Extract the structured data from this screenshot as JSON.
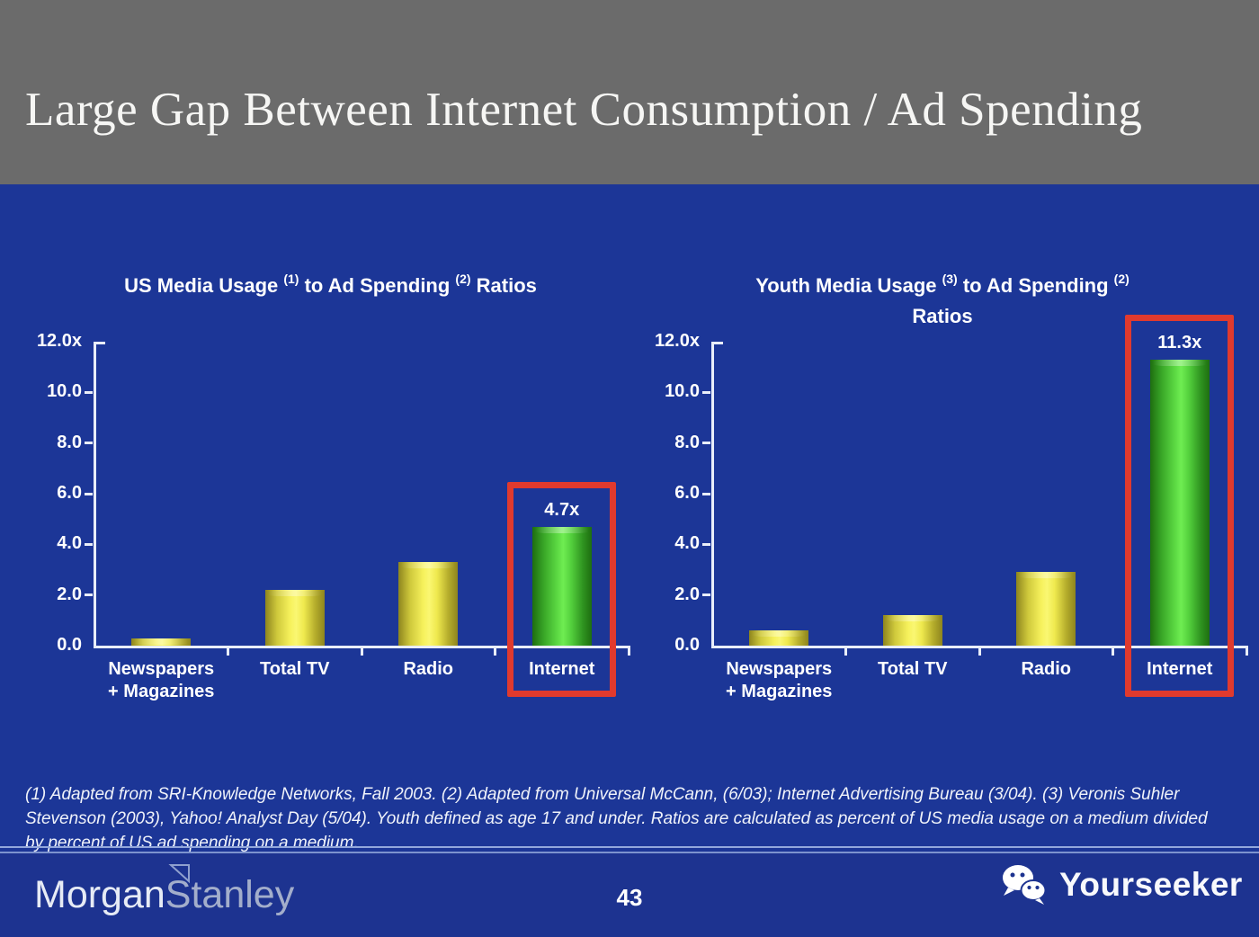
{
  "header": {
    "title": "Large Gap Between Internet Consumption / Ad Spending"
  },
  "footnote": {
    "lines": [
      "(1) Adapted from SRI-Knowledge Networks, Fall 2003.  (2) Adapted from Universal McCann, (6/03); Internet Advertising Bureau (3/04). (3) Veronis Suhler",
      "Stevenson (2003), Yahoo! Analyst Day (5/04).  Youth defined as age 17 and under.  Ratios are calculated as percent of US media usage on a medium divided",
      "by percent of US ad spending on a medium."
    ]
  },
  "footer": {
    "brand_part1": "Morgan",
    "brand_part2": "Stanley",
    "page_number": "43",
    "watermark": "Yourseeker",
    "watermark_icon": "wechat-icon"
  },
  "colors": {
    "slide_bg": "#1c3697",
    "header_bg": "#6b6b6b",
    "footer_bg": "#1d3390",
    "bar_yellow_center": "#f8f468",
    "bar_yellow_edge": "#8e851e",
    "bar_green_center": "#68e74c",
    "bar_green_edge": "#1f7011",
    "highlight_red": "#e03a2e",
    "axis": "#e9eef9",
    "text": "#ffffff"
  },
  "chart_data": [
    {
      "type": "bar",
      "title": "US Media Usage (1) to Ad Spending (2) Ratios",
      "title_parts": [
        {
          "text": "US Media Usage "
        },
        {
          "sup": "(1)"
        },
        {
          "text": " to Ad Spending "
        },
        {
          "sup": "(2)"
        },
        {
          "text": " Ratios"
        }
      ],
      "categories": [
        "Newspapers + Magazines",
        "Total TV",
        "Radio",
        "Internet"
      ],
      "category_display": [
        [
          "Newspapers",
          "+ Magazines"
        ],
        [
          "Total TV"
        ],
        [
          "Radio"
        ],
        [
          "Internet"
        ]
      ],
      "values": [
        0.3,
        2.2,
        3.3,
        4.7
      ],
      "bar_colors": [
        "yellow",
        "yellow",
        "yellow",
        "green"
      ],
      "ylim": [
        0,
        12
      ],
      "yticks": [
        {
          "v": 12,
          "label": "12.0x"
        },
        {
          "v": 10,
          "label": "10.0"
        },
        {
          "v": 8,
          "label": "8.0"
        },
        {
          "v": 6,
          "label": "6.0"
        },
        {
          "v": 4,
          "label": "4.0"
        },
        {
          "v": 2,
          "label": "2.0"
        },
        {
          "v": 0,
          "label": "0.0"
        }
      ],
      "value_label": {
        "index": 3,
        "text": "4.7x"
      },
      "highlight": {
        "index": 3
      },
      "grid": false,
      "legend": false
    },
    {
      "type": "bar",
      "title": "Youth Media Usage (3) to Ad Spending (2) Ratios",
      "title_parts": [
        {
          "text": "Youth Media Usage "
        },
        {
          "sup": "(3)"
        },
        {
          "text": " to Ad Spending "
        },
        {
          "sup": "(2)"
        },
        {
          "br": true
        },
        {
          "text": "Ratios"
        }
      ],
      "categories": [
        "Newspapers + Magazines",
        "Total TV",
        "Radio",
        "Internet"
      ],
      "category_display": [
        [
          "Newspapers",
          "+ Magazines"
        ],
        [
          "Total TV"
        ],
        [
          "Radio"
        ],
        [
          "Internet"
        ]
      ],
      "values": [
        0.6,
        1.2,
        2.9,
        11.3
      ],
      "bar_colors": [
        "yellow",
        "yellow",
        "yellow",
        "green"
      ],
      "ylim": [
        0,
        12
      ],
      "yticks": [
        {
          "v": 12,
          "label": "12.0x"
        },
        {
          "v": 10,
          "label": "10.0"
        },
        {
          "v": 8,
          "label": "8.0"
        },
        {
          "v": 6,
          "label": "6.0"
        },
        {
          "v": 4,
          "label": "4.0"
        },
        {
          "v": 2,
          "label": "2.0"
        },
        {
          "v": 0,
          "label": "0.0"
        }
      ],
      "value_label": {
        "index": 3,
        "text": "11.3x"
      },
      "highlight": {
        "index": 3
      },
      "grid": false,
      "legend": false
    }
  ]
}
